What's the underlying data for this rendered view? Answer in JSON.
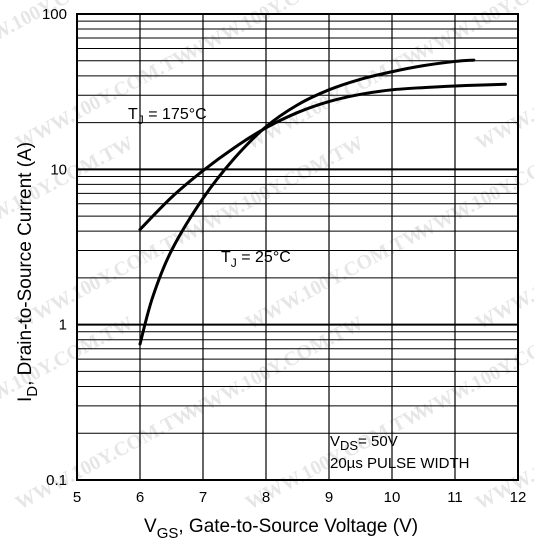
{
  "chart_data": {
    "type": "line",
    "x_axis": {
      "label_main": "V",
      "label_sub": "GS",
      "label_rest": ", Gate-to-Source Voltage (V)",
      "range": [
        5,
        12
      ],
      "ticks": [
        "5",
        "6",
        "7",
        "8",
        "9",
        "10",
        "11",
        "12"
      ]
    },
    "y_axis": {
      "scale": "log",
      "label_main": "I",
      "label_sub": "D",
      "label_rest": ",  Drain-to-Source Current (A)",
      "range": [
        0.1,
        100
      ],
      "ticks": [
        "0.1",
        "1",
        "10",
        "100"
      ]
    },
    "grid": true,
    "series": [
      {
        "name_main": "T",
        "name_sub": "J",
        "name_rest": " = 175°C",
        "x": [
          6.0,
          6.5,
          7.0,
          7.5,
          8.0,
          8.5,
          9.0,
          9.5,
          10.0,
          10.5,
          11.0,
          11.5,
          11.8
        ],
        "y": [
          4.1,
          6.6,
          9.8,
          13.8,
          18.5,
          23.2,
          27.3,
          30.4,
          32.5,
          33.6,
          34.4,
          35.0,
          35.3
        ]
      },
      {
        "name_main": "T",
        "name_sub": "J",
        "name_rest": " = 25°C",
        "x": [
          6.0,
          6.2,
          6.5,
          7.0,
          7.5,
          8.0,
          8.5,
          9.0,
          9.5,
          10.0,
          10.5,
          11.0,
          11.3
        ],
        "y": [
          0.75,
          1.5,
          3.0,
          6.5,
          11.8,
          18.8,
          26.0,
          32.5,
          38.0,
          42.5,
          46.5,
          49.5,
          50.5
        ]
      }
    ],
    "annotation": {
      "vds_main": "V",
      "vds_sub": "DS",
      "vds_rest": "= 50V",
      "pulse": "20µs PULSE WIDTH"
    },
    "watermark": "WWW.100Y.COM.TW"
  }
}
